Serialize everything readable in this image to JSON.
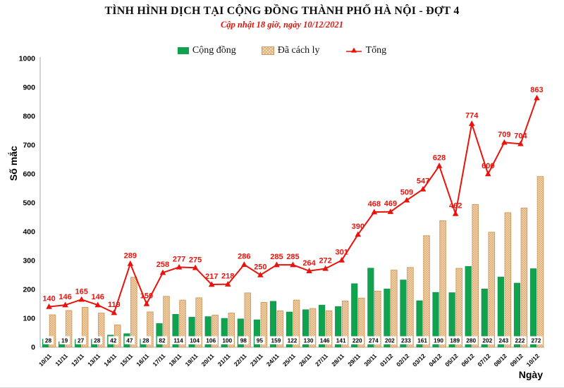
{
  "header": {
    "title": "TÌNH HÌNH DỊCH TẠI CỘNG ĐỒNG THÀNH PHỐ HÀ NỘI - ĐỢT 4",
    "subtitle": "Cập nhật 18 giờ, ngày 10/12/2021"
  },
  "legend": {
    "items": [
      {
        "label": "Cộng đồng",
        "swatch": "green-solid-square"
      },
      {
        "label": "Đã cách ly",
        "swatch": "tan-hatched-square"
      },
      {
        "label": "Tổng",
        "swatch": "red-line-triangle-marker"
      }
    ]
  },
  "axes": {
    "y_label": "Số mắc",
    "x_label": "Ngày",
    "y_ticks": [
      0,
      100,
      200,
      300,
      400,
      500,
      600,
      700,
      800,
      900,
      1000
    ]
  },
  "colors": {
    "community_green": "#10a24e",
    "community_green_border": "#0b8a41",
    "quarantine_tan_fill": "#f9ebcf",
    "quarantine_tan_line": "#dea46a",
    "quarantine_tan_border": "#cf9a5d",
    "total_red": "#e8130c",
    "axis_gray": "#b8b8b8",
    "subtitle_red": "#e3120b",
    "label_box_bg": "#ffffff",
    "text_black": "#000000"
  },
  "chart_data": {
    "type": "bar",
    "subtype": "grouped-bars-with-line-overlay",
    "title": "TÌNH HÌNH DỊCH TẠI CỘNG ĐỒNG THÀNH PHỐ HÀ NỘI - ĐỢT 4",
    "subtitle": "Cập nhật 18 giờ, ngày 10/12/2021",
    "xlabel": "Ngày",
    "ylabel": "Số mắc",
    "ylim": [
      0,
      1000
    ],
    "grid": false,
    "legend_position": "top",
    "categories": [
      "10/11",
      "11/11",
      "12/11",
      "13/11",
      "14/11",
      "15/11",
      "16/11",
      "17/11",
      "18/11",
      "19/11",
      "20/11",
      "21/11",
      "22/11",
      "23/11",
      "24/11",
      "25/11",
      "26/11",
      "27/11",
      "28/11",
      "29/11",
      "30/11",
      "01/12",
      "02/12",
      "03/12",
      "04/12",
      "05/12",
      "06/12",
      "07/12",
      "08/12",
      "09/12",
      "10/12"
    ],
    "series": [
      {
        "name": "Cộng đồng",
        "render": "bar-solid",
        "color": "#10a24e",
        "labels_shown": "in-white-boxes-at-bar-base",
        "values": [
          28,
          19,
          27,
          28,
          42,
          47,
          28,
          82,
          114,
          104,
          106,
          100,
          98,
          95,
          159,
          122,
          130,
          146,
          141,
          220,
          274,
          202,
          233,
          161,
          190,
          189,
          280,
          202,
          243,
          222,
          272
        ]
      },
      {
        "name": "Đã cách ly",
        "render": "bar-hatched",
        "color": "#f9ebcf",
        "labels_shown": "none",
        "values": [
          112,
          127,
          138,
          118,
          77,
          242,
          122,
          176,
          163,
          171,
          111,
          118,
          188,
          155,
          126,
          163,
          134,
          126,
          160,
          170,
          194,
          267,
          276,
          386,
          438,
          273,
          494,
          398,
          466,
          482,
          591
        ]
      },
      {
        "name": "Tổng",
        "render": "line-triangle-markers",
        "color": "#e8130c",
        "labels_shown": "above-markers",
        "values": [
          140,
          146,
          165,
          146,
          119,
          289,
          150,
          258,
          277,
          275,
          217,
          218,
          286,
          250,
          285,
          285,
          264,
          272,
          301,
          390,
          468,
          469,
          509,
          547,
          628,
          462,
          774,
          600,
          709,
          704,
          863
        ]
      }
    ]
  }
}
